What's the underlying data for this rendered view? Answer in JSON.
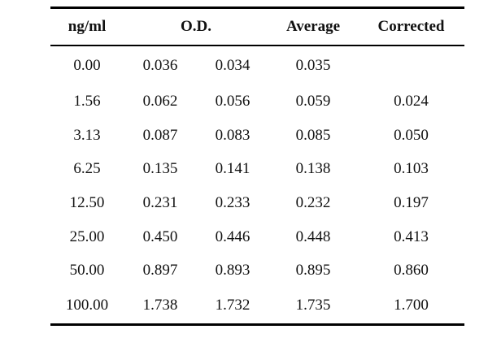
{
  "table": {
    "headers": {
      "concentration": "ng/ml",
      "od": "O.D.",
      "average": "Average",
      "corrected": "Corrected"
    },
    "rows": [
      {
        "conc": "0.00",
        "od1": "0.036",
        "od2": "0.034",
        "avg": "0.035",
        "corr": ""
      },
      {
        "conc": "1.56",
        "od1": "0.062",
        "od2": "0.056",
        "avg": "0.059",
        "corr": "0.024"
      },
      {
        "conc": "3.13",
        "od1": "0.087",
        "od2": "0.083",
        "avg": "0.085",
        "corr": "0.050"
      },
      {
        "conc": "6.25",
        "od1": "0.135",
        "od2": "0.141",
        "avg": "0.138",
        "corr": "0.103"
      },
      {
        "conc": "12.50",
        "od1": "0.231",
        "od2": "0.233",
        "avg": "0.232",
        "corr": "0.197"
      },
      {
        "conc": "25.00",
        "od1": "0.450",
        "od2": "0.446",
        "avg": "0.448",
        "corr": "0.413"
      },
      {
        "conc": "50.00",
        "od1": "0.897",
        "od2": "0.893",
        "avg": "0.895",
        "corr": "0.860"
      },
      {
        "conc": "100.00",
        "od1": "1.738",
        "od2": "1.732",
        "avg": "1.735",
        "corr": "1.700"
      }
    ]
  }
}
